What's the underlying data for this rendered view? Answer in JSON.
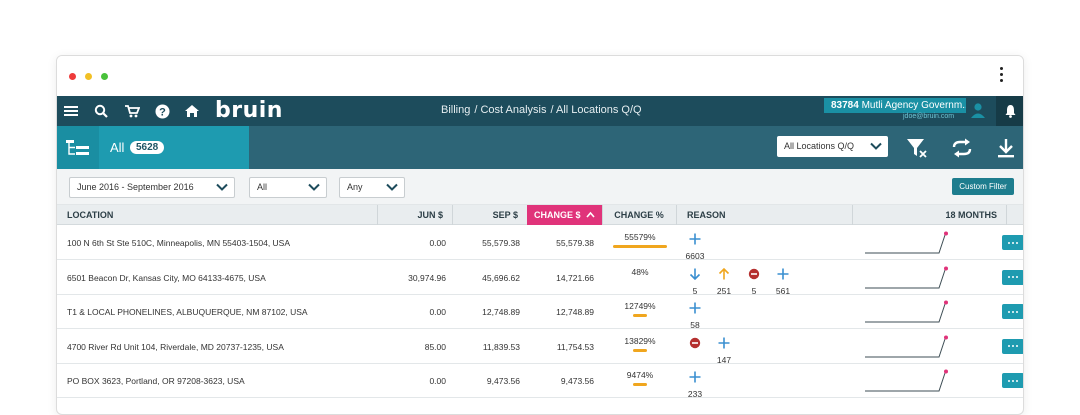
{
  "nav": {
    "logo": "bruin",
    "breadcrumbs": [
      "Billing",
      "/ Cost Analysis",
      "/ All Locations Q/Q"
    ],
    "account_id": "83784",
    "account_name": "Mutli Agency Governm...",
    "email": "jdoe@bruin.com"
  },
  "filterbar": {
    "all_label": "All",
    "count": "5628",
    "location_select": "All Locations Q/Q"
  },
  "subbar": {
    "date_range": "June 2016 - September 2016",
    "filter2": "All",
    "filter3": "Any",
    "custom_filter": "Custom Filter"
  },
  "columns": {
    "location": "LOCATION",
    "jun": "JUN $",
    "sep": "SEP $",
    "change": "CHANGE $",
    "change_pct": "CHANGE %",
    "reason": "REASON",
    "months": "18 MONTHS"
  },
  "colors": {
    "nav_bg": "#1d4c5c",
    "accent": "#1e9bb0",
    "sort_header": "#e0337a",
    "bar": "#f0a61e",
    "reason_icon": "#3a8fd0",
    "spark_dot": "#e0337a"
  },
  "rows": [
    {
      "location": "100 N 6th St Ste 510C, Minneapolis, MN 55403-1504, USA",
      "jun": "0.00",
      "sep": "55,579.38",
      "change": "55,579.38",
      "pct": "55579%",
      "bar_fraction": 1.0,
      "reasons": [
        {
          "icon": "plus-icon",
          "count": "6603"
        }
      ]
    },
    {
      "location": "6501 Beacon Dr, Kansas City, MO 64133-4675, USA",
      "jun": "30,974.96",
      "sep": "45,696.62",
      "change": "14,721.66",
      "pct": "48%",
      "bar_fraction": 0,
      "reasons": [
        {
          "icon": "arrow-down-icon",
          "count": "5"
        },
        {
          "icon": "arrow-up-icon",
          "count": "251"
        },
        {
          "icon": "minus-circle-icon",
          "count": "5"
        },
        {
          "icon": "plus-icon",
          "count": "561"
        }
      ]
    },
    {
      "location": "T1 & LOCAL PHONELINES, ALBUQUERQUE, NM 87102, USA",
      "jun": "0.00",
      "sep": "12,748.89",
      "change": "12,748.89",
      "pct": "12749%",
      "bar_fraction": 0.23,
      "reasons": [
        {
          "icon": "plus-icon",
          "count": "58"
        }
      ]
    },
    {
      "location": "4700 River Rd Unit 104, Riverdale, MD 20737-1235, USA",
      "jun": "85.00",
      "sep": "11,839.53",
      "change": "11,754.53",
      "pct": "13829%",
      "bar_fraction": 0.25,
      "reasons": [
        {
          "icon": "minus-circle-icon",
          "count": ""
        },
        {
          "icon": "plus-icon",
          "count": "147"
        }
      ]
    },
    {
      "location": "PO BOX 3623, Portland, OR 97208-3623, USA",
      "jun": "0.00",
      "sep": "9,473.56",
      "change": "9,473.56",
      "pct": "9474%",
      "bar_fraction": 0.17,
      "reasons": [
        {
          "icon": "plus-icon",
          "count": "233"
        }
      ]
    }
  ]
}
